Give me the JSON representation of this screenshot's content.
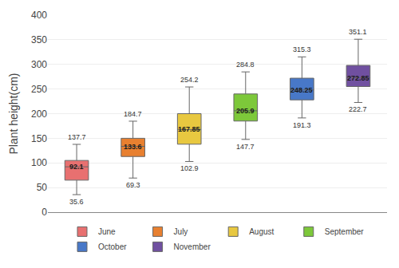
{
  "chart_data": {
    "type": "box",
    "ylabel": "Plant height(cm)",
    "series": [
      {
        "name": "June",
        "color": "#E87070",
        "min": 35.6,
        "q1": 65.0,
        "median": 92.1,
        "q3": 105.0,
        "max": 137.7
      },
      {
        "name": "July",
        "color": "#E88030",
        "min": 69.3,
        "q1": 113.0,
        "median": 133.6,
        "q3": 150.0,
        "max": 184.7
      },
      {
        "name": "August",
        "color": "#E8C840",
        "min": 102.9,
        "q1": 138.0,
        "median": 167.85,
        "q3": 200.0,
        "max": 254.2
      },
      {
        "name": "September",
        "color": "#7DC83A",
        "min": 147.7,
        "q1": 185.0,
        "median": 205.9,
        "q3": 240.0,
        "max": 284.8
      },
      {
        "name": "October",
        "color": "#4878C8",
        "min": 191.3,
        "q1": 228.0,
        "median": 248.25,
        "q3": 272.0,
        "max": 315.3
      },
      {
        "name": "November",
        "color": "#7050A0",
        "min": 222.7,
        "q1": 255.0,
        "median": 272.85,
        "q3": 298.0,
        "max": 351.1
      }
    ],
    "ylim": [
      0,
      400
    ],
    "yticks": [
      0,
      50,
      100,
      150,
      200,
      250,
      300,
      350,
      400
    ],
    "grid": true,
    "legend": "bottom",
    "data_labels": true,
    "tick_labels": "y"
  }
}
